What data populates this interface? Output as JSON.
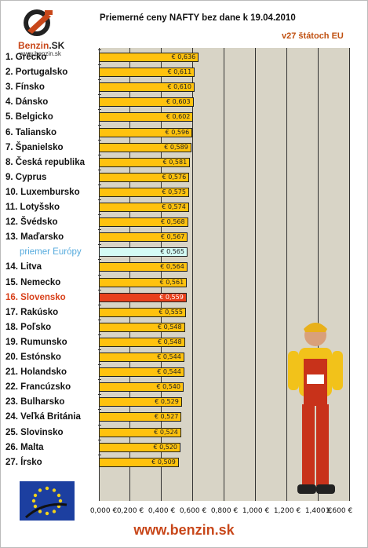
{
  "logo": {
    "brand": "Benzin",
    "brand_suffix": ".SK",
    "url": "www.benzin.sk"
  },
  "chart_data": {
    "type": "bar",
    "orientation": "horizontal",
    "title": "Priemerné ceny NAFTY bez dane k 19.04.2010",
    "subtitle": "v27 štátoch EU",
    "categories": [
      "1. Grécko",
      "2. Portugalsko",
      "3. Fínsko",
      "4. Dánsko",
      "5. Belgicko",
      "6. Taliansko",
      "7. Španielsko",
      "8. Česká republika",
      "9. Cyprus",
      "10. Luxembursko",
      "11. Lotyšsko",
      "12. Švédsko",
      "13. Maďarsko",
      "priemer Európy",
      "14. Litva",
      "15. Nemecko",
      "16. Slovensko",
      "17. Rakúsko",
      "18. Poľsko",
      "19. Rumunsko",
      "20. Estónsko",
      "21. Holandsko",
      "22. Francúzsko",
      "23. Bulharsko",
      "24. Veľká Británia",
      "25. Slovinsko",
      "26. Malta",
      "27. Írsko"
    ],
    "values": [
      0.636,
      0.611,
      0.61,
      0.603,
      0.602,
      0.596,
      0.589,
      0.581,
      0.576,
      0.575,
      0.574,
      0.568,
      0.567,
      0.565,
      0.564,
      0.561,
      0.559,
      0.555,
      0.548,
      0.548,
      0.544,
      0.544,
      0.54,
      0.529,
      0.527,
      0.524,
      0.52,
      0.509
    ],
    "value_labels": [
      "€ 0,636",
      "€ 0,611",
      "€ 0,610",
      "€ 0,603",
      "€ 0,602",
      "€ 0,596",
      "€ 0,589",
      "€ 0,581",
      "€ 0,576",
      "€ 0,575",
      "€ 0,574",
      "€ 0,568",
      "€ 0,567",
      "€ 0,565",
      "€ 0,564",
      "€ 0,561",
      "€ 0,559",
      "€ 0,555",
      "€ 0,548",
      "€ 0,548",
      "€ 0,544",
      "€ 0,544",
      "€ 0,540",
      "€ 0,529",
      "€ 0,527",
      "€ 0,524",
      "€ 0,520",
      "€ 0,509"
    ],
    "highlight": {
      "average_index": 13,
      "slovakia_index": 16
    },
    "colors": {
      "bar": "#ffc20e",
      "average": "#d4fbf5",
      "slovakia": "#e8401c",
      "average_text": "#55aadd",
      "slovakia_text": "#d8401a"
    },
    "xlim": [
      0,
      1.6
    ],
    "xticks": [
      0,
      0.2,
      0.4,
      0.6,
      0.8,
      1.0,
      1.2,
      1.4,
      1.6
    ],
    "xtick_labels": [
      "0,000 €",
      "0,200 €",
      "0,400 €",
      "0,600 €",
      "0,800 €",
      "1,000 €",
      "1,200 €",
      "1,400 €",
      "1,600 €"
    ],
    "grid": true
  },
  "footer": {
    "url": "www.benzin.sk"
  }
}
